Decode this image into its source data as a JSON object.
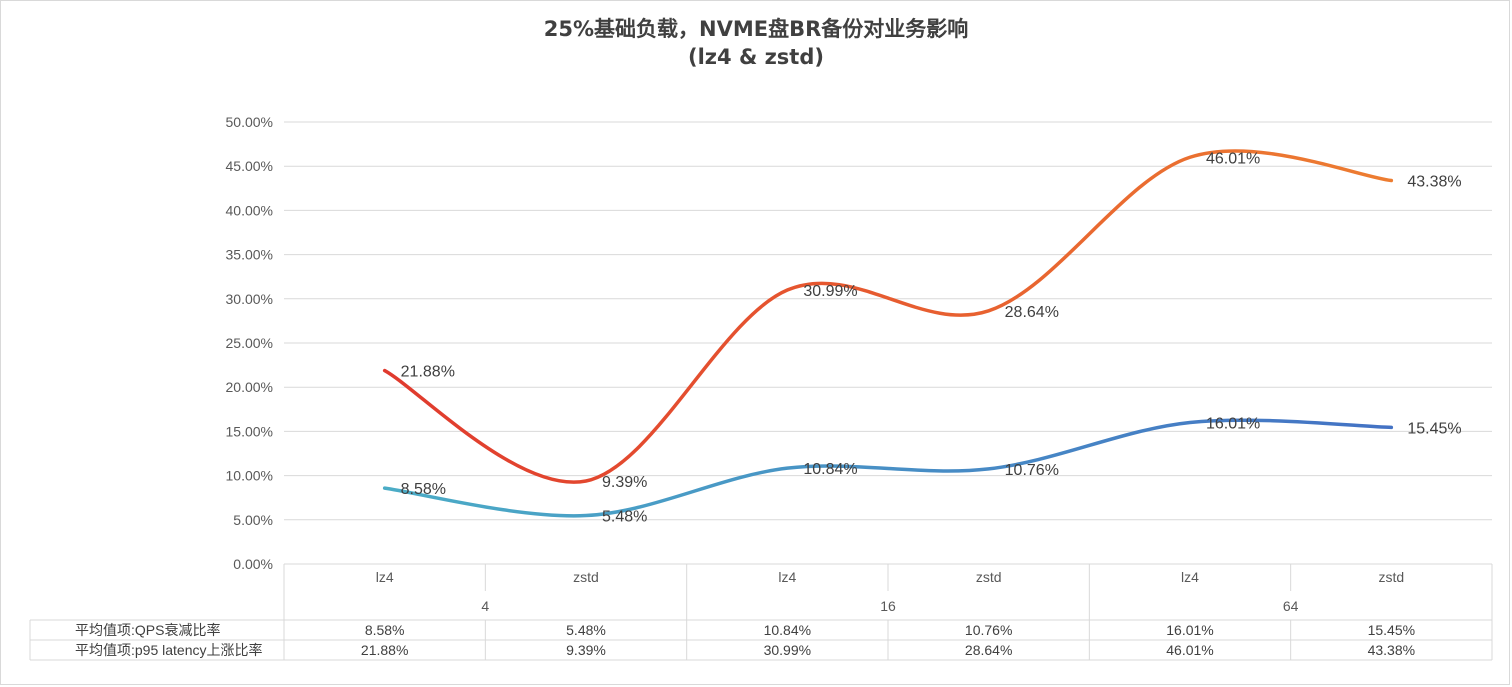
{
  "chart_data": {
    "type": "line",
    "title": "25%基础负载，NVME盘BR备份对业务影响",
    "subtitle": "(lz4 & zstd)",
    "y_ticks": [
      "0.00%",
      "5.00%",
      "10.00%",
      "15.00%",
      "20.00%",
      "25.00%",
      "30.00%",
      "35.00%",
      "40.00%",
      "45.00%",
      "50.00%"
    ],
    "ylim": [
      0,
      50
    ],
    "grid": true,
    "categories": [
      "lz4",
      "zstd",
      "lz4",
      "zstd",
      "lz4",
      "zstd"
    ],
    "groups": [
      "4",
      "16",
      "64"
    ],
    "series": [
      {
        "name": "平均值项:QPS衰减比率",
        "values": [
          8.58,
          5.48,
          10.84,
          10.76,
          16.01,
          15.45
        ],
        "labels": [
          "8.58%",
          "5.48%",
          "10.84%",
          "10.76%",
          "16.01%",
          "15.45%"
        ],
        "color_start": "#4bacc6",
        "color_end": "#4472c4"
      },
      {
        "name": "平均值项:p95 latency上涨比率",
        "values": [
          21.88,
          9.39,
          30.99,
          28.64,
          46.01,
          43.38
        ],
        "labels": [
          "21.88%",
          "9.39%",
          "30.99%",
          "28.64%",
          "46.01%",
          "43.38%"
        ],
        "color_start": "#e03a2e",
        "color_end": "#ed7d31"
      }
    ]
  }
}
